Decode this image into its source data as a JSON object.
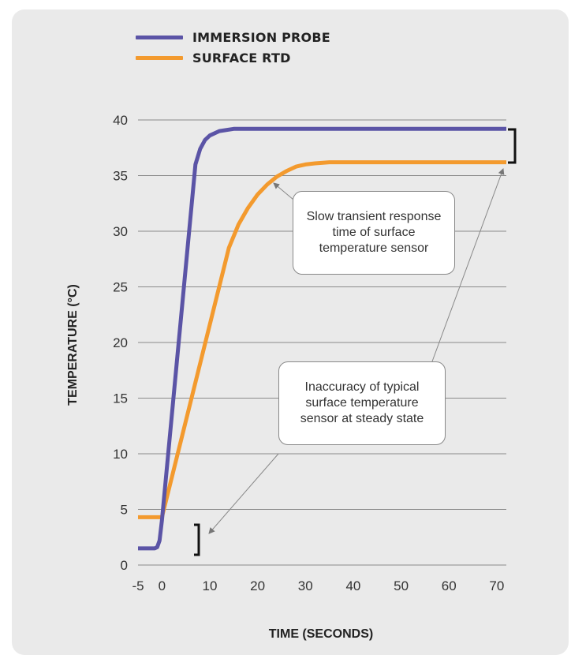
{
  "chart_data": {
    "type": "line",
    "xlabel": "TIME (SECONDS)",
    "ylabel": "TEMPERATURE (°C)",
    "xlim": [
      -5,
      72
    ],
    "ylim": [
      0,
      40
    ],
    "xticks": [
      -5,
      0,
      10,
      20,
      30,
      40,
      50,
      60,
      70
    ],
    "yticks": [
      0,
      5,
      10,
      15,
      20,
      25,
      30,
      35,
      40
    ],
    "grid": "horizontal",
    "legend_position": "top-left",
    "series": [
      {
        "name": "IMMERSION PROBE",
        "color": "#5b54a6",
        "x": [
          -5,
          -1.5,
          -1,
          -0.5,
          0,
          7,
          8,
          9,
          10,
          12,
          15,
          20,
          72
        ],
        "y": [
          1.5,
          1.5,
          1.6,
          2.2,
          4,
          36,
          37.4,
          38.2,
          38.6,
          39.0,
          39.2,
          39.2,
          39.2
        ]
      },
      {
        "name": "SURFACE RTD",
        "color": "#f39a2e",
        "x": [
          -5,
          0,
          14,
          16,
          18,
          20,
          22,
          24,
          26,
          28,
          30,
          32,
          35,
          72
        ],
        "y": [
          4.3,
          4.3,
          28.5,
          30.6,
          32.1,
          33.3,
          34.2,
          34.9,
          35.4,
          35.8,
          36.0,
          36.1,
          36.2,
          36.2
        ]
      }
    ],
    "annotations": [
      "Slow transient response time of surface temperature sensor",
      "Inaccuracy of typical surface temperature sensor at steady state"
    ]
  }
}
